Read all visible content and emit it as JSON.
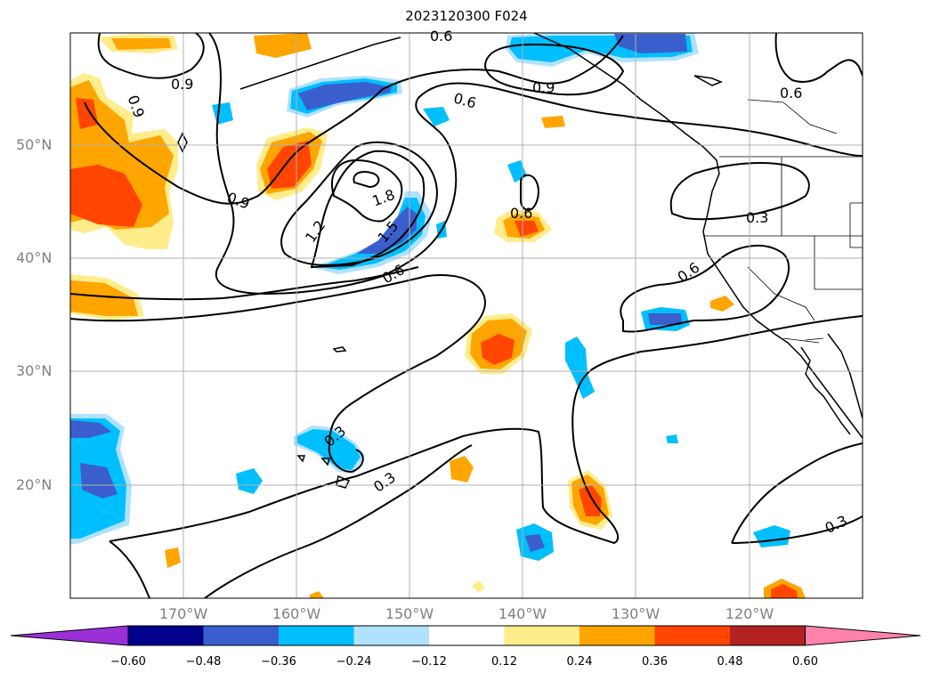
{
  "title": "2023120300 F024",
  "lat_labels": [
    "50°N",
    "40°N",
    "30°N",
    "20°N"
  ],
  "lon_labels": [
    "170°W",
    "160°W",
    "150°W",
    "140°W",
    "130°W",
    "120°W"
  ],
  "contour_labels": [
    "0.6",
    "0.9",
    "0.9",
    "0.6",
    "0.6",
    "0.9",
    "0.9",
    "1.2",
    "1.5",
    "1.8",
    "0.6",
    "0.6",
    "0.3",
    "0.6",
    "0.3",
    "0.3",
    "0.3"
  ],
  "colorbar": {
    "ticks": [
      "−0.60",
      "−0.48",
      "−0.36",
      "−0.24",
      "−0.12",
      "0.12",
      "0.24",
      "0.36",
      "0.48",
      "0.60"
    ],
    "colors": [
      "#9b30d9",
      "#00008b",
      "#3a5fcd",
      "#00bfff",
      "#b0e2ff",
      "#ffffff",
      "#ffec8b",
      "#ffa500",
      "#ff4500",
      "#b22222",
      "#ff82ab"
    ]
  },
  "fill_colors": {
    "neg_light": "#b0e2ff",
    "neg_mid": "#00bfff",
    "neg_dark": "#3a5fcd",
    "pos_light": "#ffec8b",
    "pos_mid": "#ffa500",
    "pos_dark": "#ff4500"
  }
}
